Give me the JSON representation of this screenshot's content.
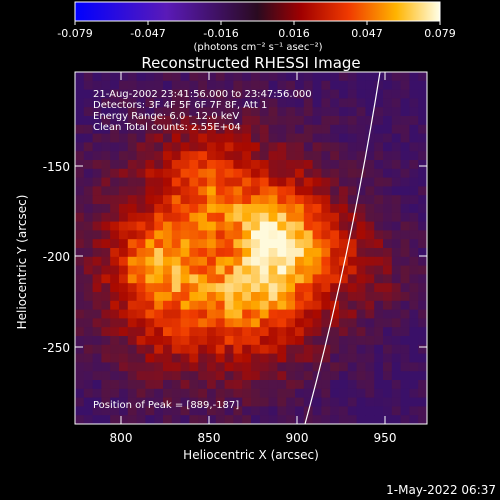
{
  "colorbar": {
    "tick_labels": [
      "-0.079",
      "-0.047",
      "-0.016",
      "0.016",
      "0.047",
      "0.079"
    ],
    "units_label": "(photons cm⁻² s⁻¹ asec⁻²)",
    "range": [
      -0.079,
      0.079
    ]
  },
  "plot": {
    "title": "Reconstructed RHESSI Image",
    "info_lines": [
      "21-Aug-2002 23:41:56.000 to 23:47:56.000",
      "Detectors: 3F 4F 5F 6F 7F 8F, Att 1",
      "Energy Range: 6.0 - 12.0 keV",
      "Clean     Total counts: 2.55E+04"
    ],
    "peak_label": "Position of Peak = [889,-187]",
    "x_axis": {
      "label": "Heliocentric X (arcsec)",
      "ticks": [
        "800",
        "850",
        "900",
        "950"
      ],
      "range": [
        775,
        967
      ]
    },
    "y_axis": {
      "label": "Heliocentric Y (arcsec)",
      "ticks": [
        "-150",
        "-200",
        "-250"
      ],
      "range": [
        -293,
        -101
      ]
    }
  },
  "footer": {
    "timestamp": "1-May-2022 06:37"
  }
}
